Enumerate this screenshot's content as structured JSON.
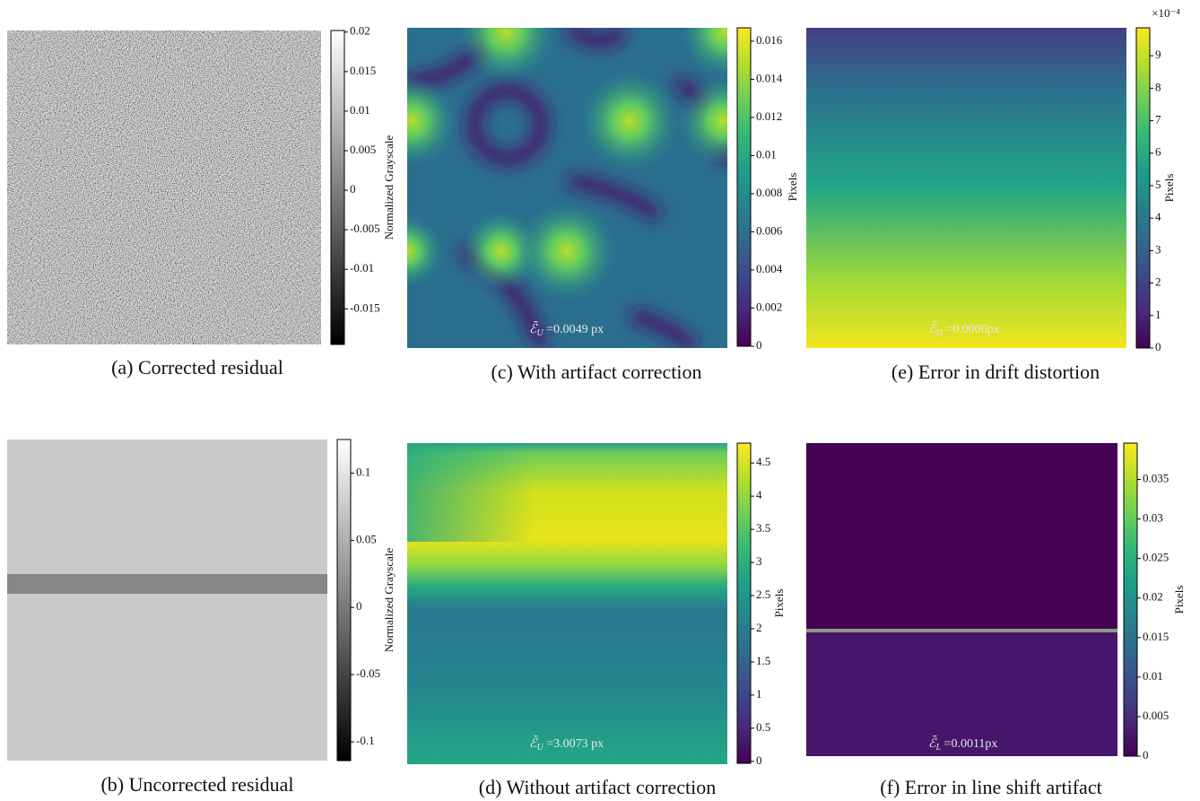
{
  "chart_data": [
    {
      "type": "heatmap",
      "caption": "(a) Corrected residual",
      "colormap": "gray",
      "colorbar_label": "Normalized Grayscale",
      "ylim": [
        -0.0195,
        0.0202
      ],
      "yticks": [
        0.02,
        0.015,
        0.01,
        0.005,
        0,
        -0.005,
        -0.01,
        -0.015
      ]
    },
    {
      "type": "heatmap",
      "caption": "(b) Uncorrected residual",
      "colormap": "gray",
      "colorbar_label": "Normalized Grayscale",
      "ylim": [
        -0.114,
        0.125
      ],
      "yticks": [
        0.1,
        0.05,
        0,
        -0.05,
        -0.1
      ]
    },
    {
      "type": "heatmap",
      "caption": "(c) With artifact correction",
      "colormap": "viridis",
      "colorbar_label": "Pixels",
      "ylim": [
        0,
        0.0167
      ],
      "yticks": [
        0,
        0.002,
        0.004,
        0.006,
        0.008,
        0.01,
        0.012,
        0.014,
        0.016
      ],
      "annotation": {
        "symbol": "ℰ̄",
        "subscript": "U",
        "text": " =0.0049 px"
      }
    },
    {
      "type": "heatmap",
      "caption": "(d) Without artifact correction",
      "colormap": "viridis",
      "colorbar_label": "Pixels",
      "ylim": [
        -0.03,
        4.8
      ],
      "yticks": [
        0,
        0.5,
        1,
        1.5,
        2,
        2.5,
        3,
        3.5,
        4,
        4.5
      ],
      "annotation": {
        "symbol": "ℰ̄",
        "subscript": "U",
        "text": " =3.0073 px"
      }
    },
    {
      "type": "heatmap",
      "caption": "(e) Error in drift distortion",
      "colormap": "viridis",
      "colorbar_label": "Pixels",
      "ylim": [
        0,
        9.86
      ],
      "yticks": [
        0,
        1,
        2,
        3,
        4,
        5,
        6,
        7,
        8,
        9
      ],
      "multiplier": "×10⁻⁴",
      "annotation": {
        "symbol": "ℰ̄",
        "subscript": "D",
        "text": " =0.0006px"
      }
    },
    {
      "type": "heatmap",
      "caption": "(f) Error in line shift artifact",
      "colormap": "viridis",
      "colorbar_label": "Pixels",
      "ylim": [
        0,
        0.0396
      ],
      "yticks": [
        0,
        0.005,
        0.01,
        0.015,
        0.02,
        0.025,
        0.03,
        0.035
      ],
      "annotation": {
        "symbol": "ℰ̄",
        "subscript": "L",
        "text": " =0.0011px"
      }
    }
  ]
}
